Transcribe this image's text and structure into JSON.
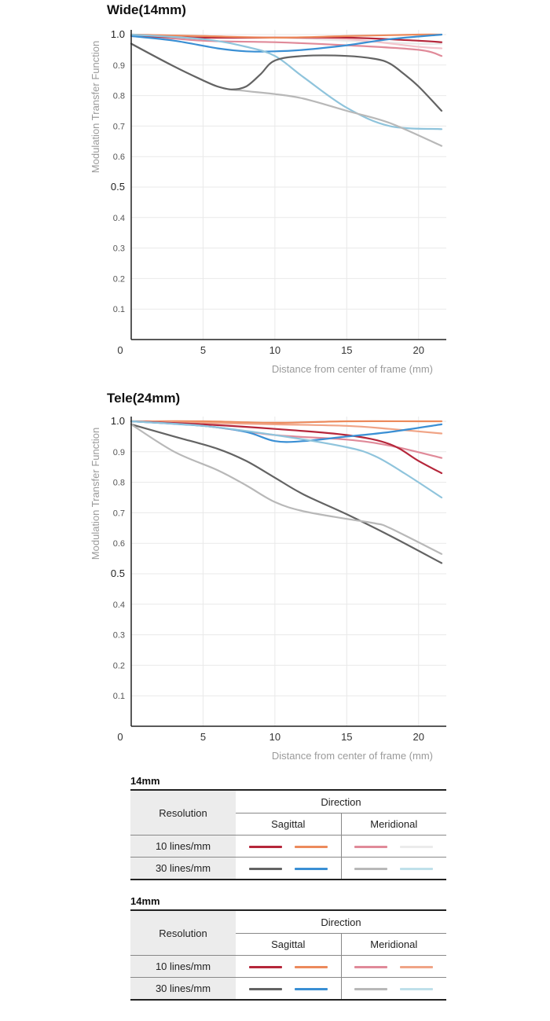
{
  "colors": {
    "s10a": "#b5263a",
    "s10b": "#ec8a5c",
    "s30a": "#636363",
    "s30b": "#3a8fd4",
    "m10a": "#e08a99",
    "m10b": "#ebebeb",
    "m10b_alt": "#f0a486",
    "m30a": "#b8b8b8",
    "m30b": "#bfe0ea",
    "grid": "#e9e9e9",
    "axis": "#222222"
  },
  "chart_data": [
    {
      "type": "line",
      "title": "Wide(14mm)",
      "xlabel": "Distance from center of frame (mm)",
      "ylabel": "Modulation Transfer Function",
      "xlim": [
        0,
        21.6
      ],
      "ylim": [
        0,
        1.0
      ],
      "x_ticks": [
        "0",
        "5",
        "10",
        "15",
        "20"
      ],
      "y_ticks": [
        "1.0",
        "0.9",
        "0.8",
        "0.7",
        "0.6",
        "0.5",
        "0.4",
        "0.3",
        "0.2",
        "0.1"
      ],
      "grid": "vertical and horizontal",
      "series": [
        {
          "color": "#e9e9e9",
          "x": [
            0,
            5,
            10,
            15,
            20,
            21.6
          ],
          "y": [
            1.0,
            0.99,
            0.99,
            0.98,
            0.97,
            0.97
          ]
        },
        {
          "color": "#f3c3cb",
          "x": [
            0,
            5,
            10,
            15,
            20,
            21.6
          ],
          "y": [
            1.0,
            0.995,
            0.99,
            0.985,
            0.96,
            0.955
          ]
        },
        {
          "color": "#e08a99",
          "x": [
            0,
            5,
            10,
            15,
            20,
            21.6
          ],
          "y": [
            1.0,
            0.98,
            0.975,
            0.965,
            0.95,
            0.93
          ]
        },
        {
          "color": "#b5263a",
          "x": [
            0,
            5,
            10,
            15,
            20,
            21.6
          ],
          "y": [
            0.995,
            0.99,
            0.99,
            0.99,
            0.98,
            0.975
          ]
        },
        {
          "color": "#ec8a5c",
          "x": [
            0,
            5,
            10,
            15,
            20,
            21.6
          ],
          "y": [
            1.0,
            0.995,
            0.99,
            0.995,
            1.0,
            1.0
          ]
        },
        {
          "color": "#3a8fd4",
          "x": [
            0,
            3,
            6,
            8,
            10,
            12,
            15,
            18,
            21.6
          ],
          "y": [
            0.995,
            0.98,
            0.955,
            0.945,
            0.945,
            0.95,
            0.965,
            0.985,
            1.0
          ]
        },
        {
          "color": "#8fc4dc",
          "x": [
            0,
            5,
            8,
            10,
            12,
            15,
            18,
            21.6
          ],
          "y": [
            1.0,
            0.985,
            0.96,
            0.93,
            0.86,
            0.76,
            0.7,
            0.69
          ]
        },
        {
          "color": "#b8b8b8",
          "x": [
            0,
            3,
            6,
            8,
            10,
            12,
            15,
            18,
            21.6
          ],
          "y": [
            0.97,
            0.895,
            0.83,
            0.815,
            0.805,
            0.79,
            0.75,
            0.71,
            0.635
          ]
        },
        {
          "color": "#636363",
          "x": [
            0,
            3,
            5,
            6,
            7,
            8,
            9,
            10,
            12,
            15,
            17,
            18,
            19,
            20,
            21.6
          ],
          "y": [
            0.97,
            0.895,
            0.85,
            0.83,
            0.82,
            0.83,
            0.87,
            0.915,
            0.93,
            0.93,
            0.92,
            0.905,
            0.87,
            0.83,
            0.75
          ]
        }
      ]
    },
    {
      "type": "line",
      "title": "Tele(24mm)",
      "xlabel": "Distance from center of frame (mm)",
      "ylabel": "Modulation Transfer Function",
      "xlim": [
        0,
        21.6
      ],
      "ylim": [
        0,
        1.0
      ],
      "x_ticks": [
        "0",
        "5",
        "10",
        "15",
        "20"
      ],
      "y_ticks": [
        "1.0",
        "0.9",
        "0.8",
        "0.7",
        "0.6",
        "0.5",
        "0.4",
        "0.3",
        "0.2",
        "0.1"
      ],
      "grid": "vertical and horizontal",
      "series": [
        {
          "color": "#ec8a5c",
          "x": [
            0,
            5,
            10,
            15,
            20,
            21.6
          ],
          "y": [
            1.0,
            1.0,
            0.995,
            1.0,
            1.0,
            1.0
          ]
        },
        {
          "color": "#f0a486",
          "x": [
            0,
            5,
            10,
            15,
            18,
            21.6
          ],
          "y": [
            1.0,
            0.995,
            0.99,
            0.985,
            0.975,
            0.96
          ]
        },
        {
          "color": "#e08a99",
          "x": [
            0,
            5,
            10,
            15,
            18,
            21.6
          ],
          "y": [
            1.0,
            0.985,
            0.955,
            0.94,
            0.92,
            0.88
          ]
        },
        {
          "color": "#b5263a",
          "x": [
            0,
            5,
            10,
            15,
            18,
            20,
            21.6
          ],
          "y": [
            1.0,
            0.99,
            0.975,
            0.955,
            0.925,
            0.87,
            0.83
          ]
        },
        {
          "color": "#3a8fd4",
          "x": [
            0,
            5,
            8,
            10,
            12,
            15,
            18,
            21.6
          ],
          "y": [
            1.0,
            0.985,
            0.965,
            0.935,
            0.935,
            0.95,
            0.965,
            0.99
          ]
        },
        {
          "color": "#8fc4dc",
          "x": [
            0,
            5,
            10,
            15,
            17,
            19,
            21.6
          ],
          "y": [
            1.0,
            0.985,
            0.955,
            0.915,
            0.885,
            0.83,
            0.75
          ]
        },
        {
          "color": "#636363",
          "x": [
            0,
            3,
            6,
            8,
            10,
            12,
            15,
            18,
            21.6
          ],
          "y": [
            0.99,
            0.95,
            0.91,
            0.87,
            0.815,
            0.76,
            0.695,
            0.625,
            0.535
          ]
        },
        {
          "color": "#b8b8b8",
          "x": [
            0,
            3,
            6,
            8,
            10,
            12,
            15,
            17,
            18,
            21.6
          ],
          "y": [
            0.99,
            0.9,
            0.84,
            0.79,
            0.735,
            0.705,
            0.68,
            0.665,
            0.65,
            0.565
          ]
        }
      ]
    }
  ],
  "legend_tables": [
    {
      "title": "14mm",
      "resolution_header": "Resolution",
      "direction_header": "Direction",
      "sagittal": "Sagittal",
      "meridional": "Meridional",
      "rows": [
        {
          "label": "10 lines/mm",
          "sag": [
            "#b5263a",
            "#ec8a5c"
          ],
          "mer": [
            "#e08a99",
            "#ebebeb"
          ]
        },
        {
          "label": "30 lines/mm",
          "sag": [
            "#636363",
            "#3a8fd4"
          ],
          "mer": [
            "#b8b8b8",
            "#bfe0ea"
          ]
        }
      ]
    },
    {
      "title": "14mm",
      "resolution_header": "Resolution",
      "direction_header": "Direction",
      "sagittal": "Sagittal",
      "meridional": "Meridional",
      "rows": [
        {
          "label": "10 lines/mm",
          "sag": [
            "#b5263a",
            "#ec8a5c"
          ],
          "mer": [
            "#e08a99",
            "#f0a486"
          ]
        },
        {
          "label": "30 lines/mm",
          "sag": [
            "#636363",
            "#3a8fd4"
          ],
          "mer": [
            "#b8b8b8",
            "#bfe0ea"
          ]
        }
      ]
    }
  ]
}
